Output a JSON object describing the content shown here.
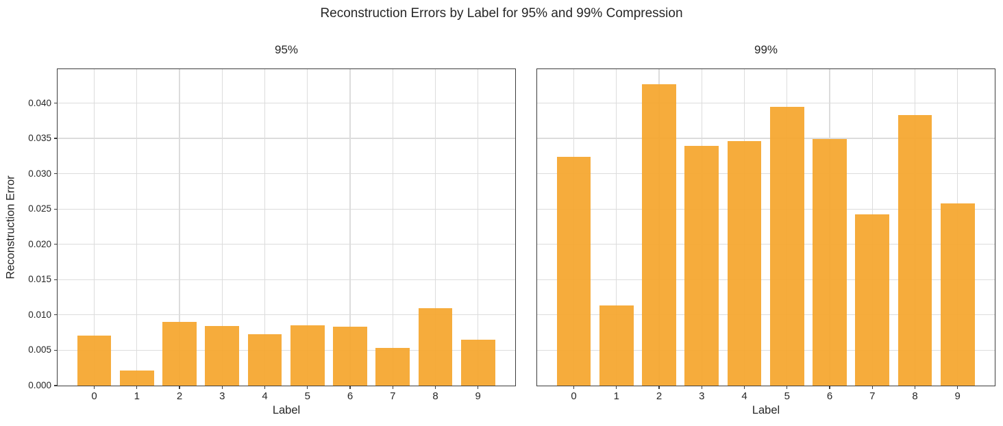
{
  "chart_data": {
    "type": "bar",
    "title": "Reconstruction Errors by Label for 95% and 99% Compression",
    "xlabel": "Label",
    "ylabel": "Reconstruction Error",
    "categories": [
      "0",
      "1",
      "2",
      "3",
      "4",
      "5",
      "6",
      "7",
      "8",
      "9"
    ],
    "ylim": [
      0,
      0.0448
    ],
    "yticks": [
      0.0,
      0.005,
      0.01,
      0.015,
      0.02,
      0.025,
      0.03,
      0.035,
      0.04
    ],
    "ytick_labels": [
      "0.000",
      "0.005",
      "0.010",
      "0.015",
      "0.020",
      "0.025",
      "0.030",
      "0.035",
      "0.040"
    ],
    "grid": true,
    "legend": "none",
    "subplots": [
      {
        "title": "95%",
        "values": [
          0.0071,
          0.0021,
          0.009,
          0.0084,
          0.0073,
          0.0085,
          0.0083,
          0.0053,
          0.011,
          0.0065
        ]
      },
      {
        "title": "99%",
        "values": [
          0.0324,
          0.0113,
          0.0427,
          0.0339,
          0.0346,
          0.0395,
          0.0349,
          0.0242,
          0.0383,
          0.0258
        ]
      }
    ]
  },
  "colors": {
    "bar": "#F5A62D",
    "grid": "#DCDCDC",
    "spine": "#3C3C3C",
    "text": "#262626",
    "background": "#FFFFFF"
  }
}
